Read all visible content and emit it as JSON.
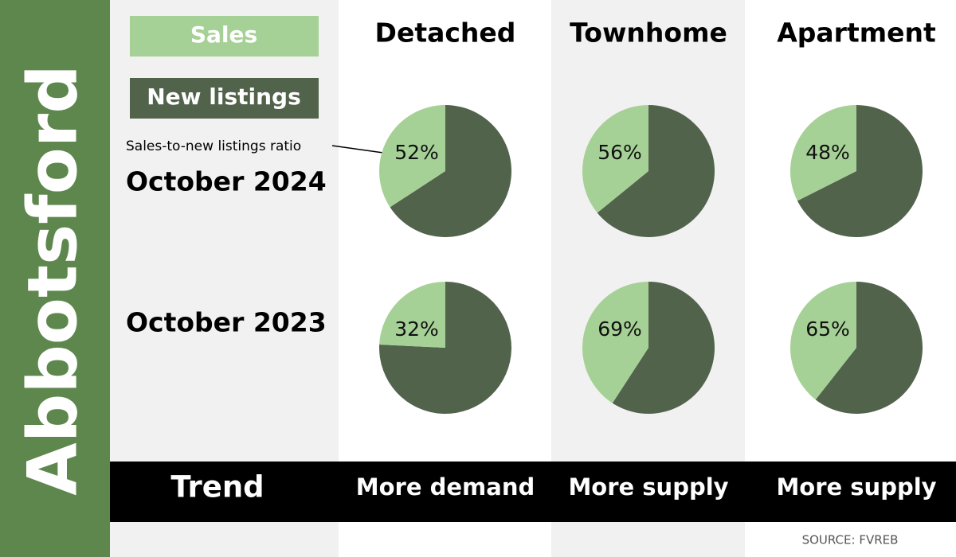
{
  "region": "Abbotsford",
  "annotation": "Sales-to-new listings ratio",
  "source": "SOURCE: FVREB",
  "chart_data": {
    "type": "pie",
    "categories": [
      "Detached",
      "Townhome",
      "Apartment"
    ],
    "legend": [
      {
        "name": "Sales",
        "color": "#a6d196"
      },
      {
        "name": "New listings",
        "color": "#52634c"
      }
    ],
    "series": [
      {
        "name": "October 2024",
        "values": [
          52,
          56,
          48
        ],
        "value_labels": [
          "52%",
          "56%",
          "48%"
        ]
      },
      {
        "name": "October 2023",
        "values": [
          32,
          69,
          65
        ],
        "value_labels": [
          "32%",
          "69%",
          "65%"
        ]
      }
    ],
    "trend": {
      "label": "Trend",
      "values": [
        "More demand",
        "More supply",
        "More supply"
      ]
    }
  }
}
